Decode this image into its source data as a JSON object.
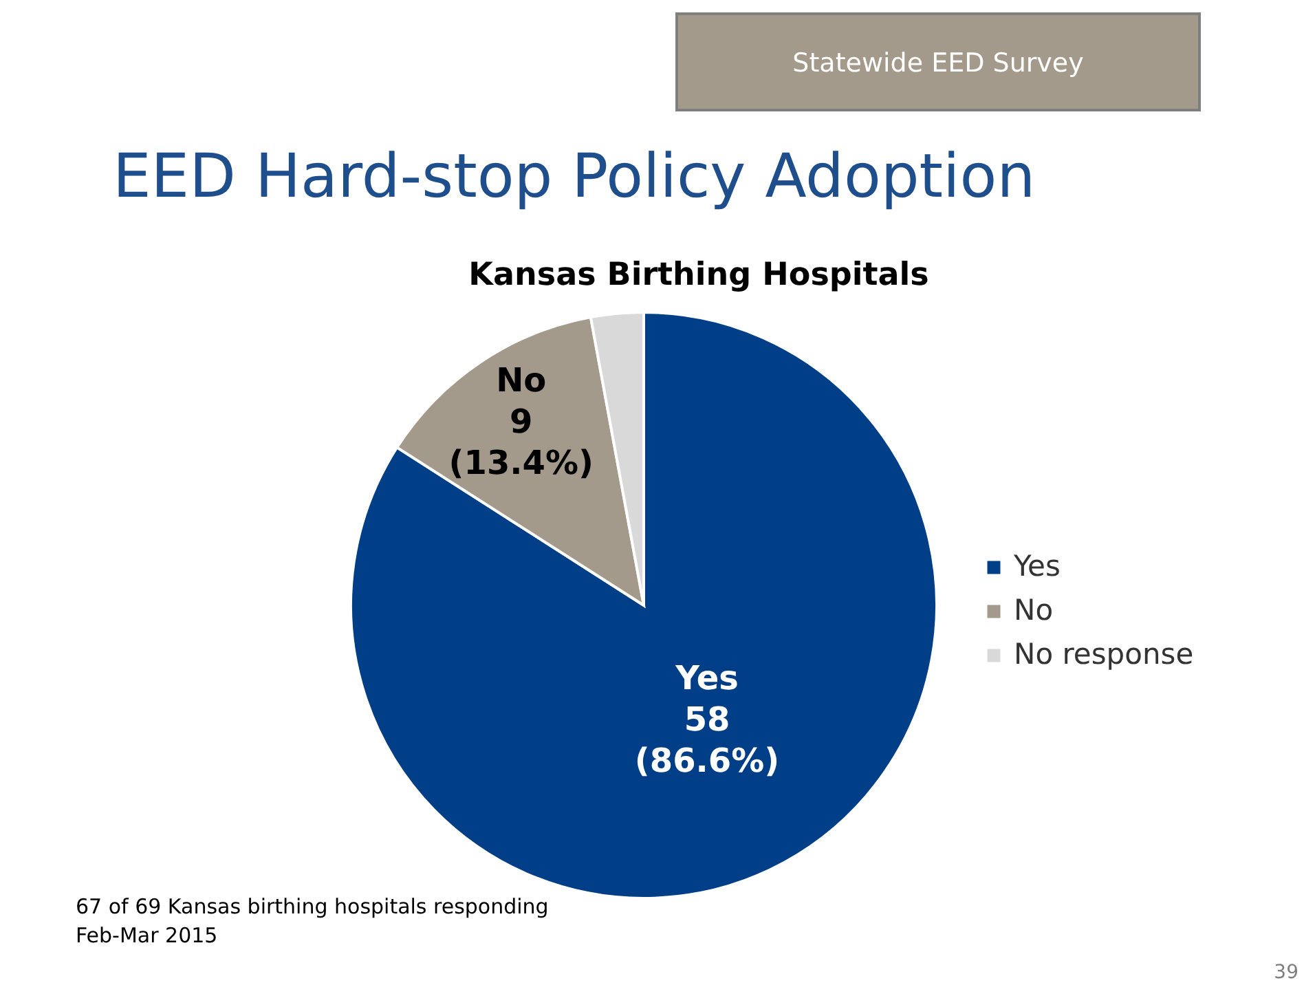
{
  "chart_data": {
    "type": "pie",
    "title": "EED Hard-stop Policy Adoption",
    "subtitle": "Kansas Birthing Hospitals",
    "categories": [
      "Yes",
      "No",
      "No response"
    ],
    "values": [
      58,
      9,
      2
    ],
    "colors": [
      "#003f87",
      "#a39a8b",
      "#d9d9d9"
    ],
    "value_labels": [
      "58\n(86.6%)",
      "9\n(13.4%)",
      null
    ],
    "legend": "right",
    "annotations": [
      "Statewide EED Survey",
      "67 of 69 Kansas birthing hospitals responding",
      "Feb-Mar 2015",
      "39"
    ]
  }
}
